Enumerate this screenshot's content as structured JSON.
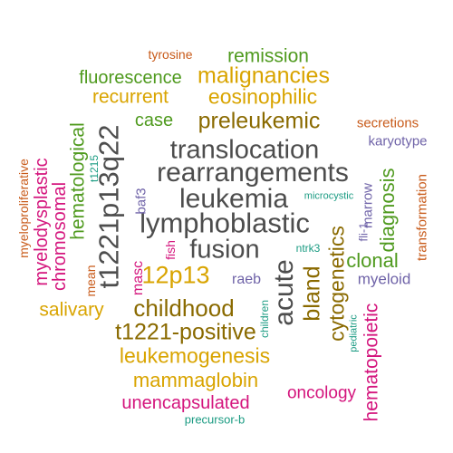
{
  "palette": {
    "dark_gray": "#4d4d4d",
    "olive": "#8a6a00",
    "gold": "#d9a400",
    "green": "#4f9a1e",
    "magenta": "#d4157d",
    "orange": "#c85a19",
    "purple": "#6f63a8",
    "teal": "#1a9b82"
  },
  "words": [
    {
      "text": "tyrosine"
    },
    {
      "text": "remission"
    },
    {
      "text": "malignancies"
    },
    {
      "text": "fluorescence"
    },
    {
      "text": "recurrent"
    },
    {
      "text": "eosinophilic"
    },
    {
      "text": "case"
    },
    {
      "text": "preleukemic"
    },
    {
      "text": "secretions"
    },
    {
      "text": "karyotype"
    },
    {
      "text": "translocation"
    },
    {
      "text": "rearrangements"
    },
    {
      "text": "leukemia"
    },
    {
      "text": "microcystic"
    },
    {
      "text": "lymphoblastic"
    },
    {
      "text": "fusion"
    },
    {
      "text": "ntrk3"
    },
    {
      "text": "12p13"
    },
    {
      "text": "raeb"
    },
    {
      "text": "clonal"
    },
    {
      "text": "myeloid"
    },
    {
      "text": "salivary"
    },
    {
      "text": "childhood"
    },
    {
      "text": "t1221-positive"
    },
    {
      "text": "leukemogenesis"
    },
    {
      "text": "mammaglobin"
    },
    {
      "text": "unencapsulated"
    },
    {
      "text": "oncology"
    },
    {
      "text": "precursor-b"
    },
    {
      "text": "t1221p13q22"
    },
    {
      "text": "hematological"
    },
    {
      "text": "chromosomal"
    },
    {
      "text": "myelodysplastic"
    },
    {
      "text": "myeloproliferative"
    },
    {
      "text": "t1215"
    },
    {
      "text": "baf3"
    },
    {
      "text": "fish"
    },
    {
      "text": "masc"
    },
    {
      "text": "mean"
    },
    {
      "text": "acute"
    },
    {
      "text": "bland"
    },
    {
      "text": "children"
    },
    {
      "text": "cytogenetics"
    },
    {
      "text": "marrow"
    },
    {
      "text": "fli-1"
    },
    {
      "text": "diagnosis"
    },
    {
      "text": "transformation"
    },
    {
      "text": "pediatric"
    },
    {
      "text": "hematopoietic"
    }
  ]
}
